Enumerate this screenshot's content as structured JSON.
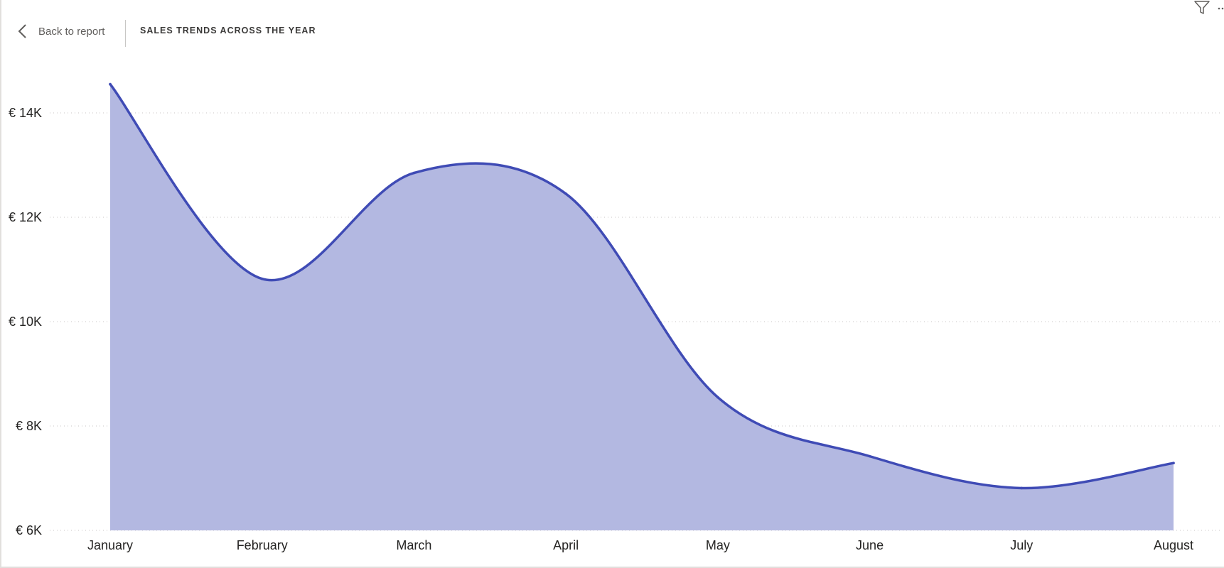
{
  "header": {
    "back_label": "Back to report",
    "title": "SALES TRENDS ACROSS THE YEAR"
  },
  "icons": {
    "back": "chevron-left-icon",
    "filter": "filter-icon",
    "more": "more-options-icon"
  },
  "colors": {
    "line": "#3f4bb5",
    "area_fill": "#b3b8e1",
    "gridline": "#c8c6c4",
    "text": "#252423"
  },
  "chart_data": {
    "type": "area",
    "title": "",
    "xlabel": "",
    "ylabel": "",
    "categories": [
      "January",
      "February",
      "March",
      "April",
      "May",
      "June",
      "July",
      "August"
    ],
    "series": [
      {
        "values": [
          14550,
          10820,
          12850,
          12450,
          8550,
          7420,
          6810,
          7290
        ]
      }
    ],
    "y_ticks": [
      6000,
      8000,
      10000,
      12000,
      14000
    ],
    "y_tick_labels": [
      "€ 6K",
      "€ 8K",
      "€ 10K",
      "€ 12K",
      "€ 14K"
    ],
    "ylim": [
      6000,
      14550
    ],
    "grid": true,
    "smooth": true
  }
}
